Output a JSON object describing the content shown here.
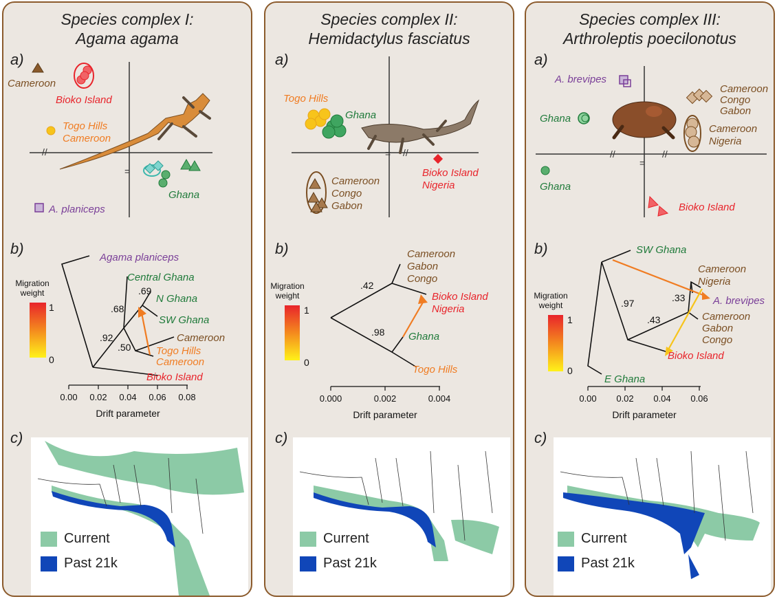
{
  "colors": {
    "brown": "#7a4e22",
    "red": "#e8242b",
    "orange": "#f07c22",
    "yellow": "#f7c41b",
    "green": "#1f7a3a",
    "teal": "#3cb8ad",
    "purple": "#7a3f98",
    "current": "#8ccaa6",
    "past": "#1046b8"
  },
  "panels": [
    {
      "title_line1": "Species complex I:",
      "title_line2": "Agama agama",
      "label_a": "a)",
      "label_b": "b)",
      "label_c": "c)",
      "scatter_labels": [
        "Cameroon",
        "Bioko Island",
        "Togo Hills",
        "Cameroon",
        "Ghana",
        "A. planiceps"
      ],
      "tree_labels": [
        "Agama planiceps",
        "Central Ghana",
        "N Ghana",
        "SW Ghana",
        "Cameroon",
        "Togo Hills",
        "Cameroon",
        "Bioko Island"
      ],
      "support": [
        ".69",
        ".68",
        ".92",
        ".50"
      ],
      "migration_title_1": "Migration",
      "migration_title_2": "weight",
      "migration_max": "1",
      "migration_min": "0",
      "axis_ticks": [
        "0.00",
        "0.02",
        "0.04",
        "0.06",
        "0.08"
      ],
      "axis_label": "Drift parameter",
      "legend_current": "Current",
      "legend_past": "Past 21k"
    },
    {
      "title_line1": "Species complex II:",
      "title_line2": "Hemidactylus fasciatus",
      "label_a": "a)",
      "label_b": "b)",
      "label_c": "c)",
      "scatter_labels": [
        "Togo Hills",
        "Ghana",
        "Bioko Island",
        "Nigeria",
        "Cameroon",
        "Congo",
        "Gabon"
      ],
      "tree_labels": [
        "Cameroon",
        "Gabon",
        "Congo",
        "Bioko Island",
        "Nigeria",
        "Ghana",
        "Togo Hills"
      ],
      "support": [
        ".42",
        ".98"
      ],
      "migration_title_1": "Migration",
      "migration_title_2": "weight",
      "migration_max": "1",
      "migration_min": "0",
      "axis_ticks": [
        "0.000",
        "0.002",
        "0.004"
      ],
      "axis_label": "Drift parameter",
      "legend_current": "Current",
      "legend_past": "Past 21k"
    },
    {
      "title_line1": "Species complex III:",
      "title_line2": "Arthroleptis poecilonotus",
      "label_a": "a)",
      "label_b": "b)",
      "label_c": "c)",
      "scatter_labels": [
        "A. brevipes",
        "Cameroon",
        "Congo",
        "Gabon",
        "Ghana",
        "Cameroon",
        "Nigeria",
        "Ghana",
        "Bioko Island"
      ],
      "tree_labels": [
        "SW Ghana",
        "Cameroon",
        "Nigeria",
        "A. brevipes",
        "Cameroon",
        "Gabon",
        "Congo",
        "Bioko Island",
        "E Ghana"
      ],
      "support": [
        ".97",
        ".33",
        ".43"
      ],
      "migration_title_1": "Migration",
      "migration_title_2": "weight",
      "migration_max": "1",
      "migration_min": "0",
      "axis_ticks": [
        "0.00",
        "0.02",
        "0.04",
        "0.06"
      ],
      "axis_label": "Drift parameter",
      "legend_current": "Current",
      "legend_past": "Past 21k"
    }
  ]
}
